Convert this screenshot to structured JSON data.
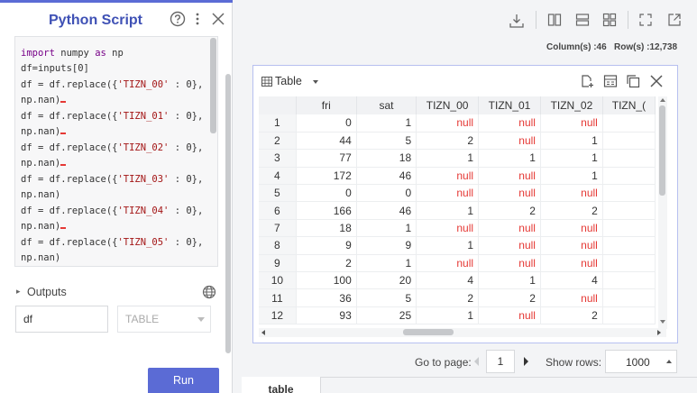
{
  "panel": {
    "title": "Python Script",
    "code_lines": [
      [
        {
          "t": "import",
          "c": "kw"
        },
        {
          "t": " numpy "
        },
        {
          "t": "as",
          "c": "kw"
        },
        {
          "t": " np"
        }
      ],
      [
        {
          "t": "df=inputs[0]"
        }
      ],
      [
        {
          "t": "df = df.replace({"
        },
        {
          "t": "'TIZN_00'",
          "c": "str"
        },
        {
          "t": " : 0},"
        }
      ],
      [
        {
          "t": "np.nan)"
        },
        {
          "t": "",
          "c": "err"
        }
      ],
      [
        {
          "t": "df = df.replace({"
        },
        {
          "t": "'TIZN_01'",
          "c": "str"
        },
        {
          "t": " : 0},"
        }
      ],
      [
        {
          "t": "np.nan)"
        },
        {
          "t": "",
          "c": "err"
        }
      ],
      [
        {
          "t": "df = df.replace({"
        },
        {
          "t": "'TIZN_02'",
          "c": "str"
        },
        {
          "t": " : 0},"
        }
      ],
      [
        {
          "t": "np.nan)"
        },
        {
          "t": "",
          "c": "err"
        }
      ],
      [
        {
          "t": "df = df.replace({"
        },
        {
          "t": "'TIZN_03'",
          "c": "str"
        },
        {
          "t": " : 0},"
        }
      ],
      [
        {
          "t": "np.nan)"
        }
      ],
      [
        {
          "t": "df = df.replace({"
        },
        {
          "t": "'TIZN_04'",
          "c": "str"
        },
        {
          "t": " : 0},"
        }
      ],
      [
        {
          "t": "np.nan)"
        },
        {
          "t": "",
          "c": "err"
        }
      ],
      [
        {
          "t": "df = df.replace({"
        },
        {
          "t": "'TIZN_05'",
          "c": "str"
        },
        {
          "t": " : 0},"
        }
      ],
      [
        {
          "t": "np.nan)"
        }
      ]
    ],
    "outputs_label": "Outputs",
    "output_name": "df",
    "output_type": "TABLE",
    "run_label": "Run"
  },
  "toolbar": {
    "icons": [
      "download-icon",
      "columns-layout-icon",
      "rows-layout-icon",
      "grid-layout-icon",
      "expand-icon",
      "popout-icon"
    ]
  },
  "stats": "Column(s) :46   Row(s) :12,738",
  "table": {
    "view_label": "Table",
    "columns": [
      "",
      "fri",
      "sat",
      "TIZN_00",
      "TIZN_01",
      "TIZN_02",
      "TIZN_("
    ],
    "rows": [
      [
        "1",
        "0",
        "1",
        "null",
        "null",
        "null",
        ""
      ],
      [
        "2",
        "44",
        "5",
        "2",
        "null",
        "1",
        ""
      ],
      [
        "3",
        "77",
        "18",
        "1",
        "1",
        "1",
        ""
      ],
      [
        "4",
        "172",
        "46",
        "null",
        "null",
        "1",
        ""
      ],
      [
        "5",
        "0",
        "0",
        "null",
        "null",
        "null",
        ""
      ],
      [
        "6",
        "166",
        "46",
        "1",
        "2",
        "2",
        ""
      ],
      [
        "7",
        "18",
        "1",
        "null",
        "null",
        "null",
        ""
      ],
      [
        "8",
        "9",
        "9",
        "1",
        "null",
        "null",
        ""
      ],
      [
        "9",
        "2",
        "1",
        "null",
        "null",
        "null",
        ""
      ],
      [
        "10",
        "100",
        "20",
        "4",
        "1",
        "4",
        ""
      ],
      [
        "11",
        "36",
        "5",
        "2",
        "2",
        "null",
        ""
      ],
      [
        "12",
        "93",
        "25",
        "1",
        "null",
        "2",
        ""
      ]
    ],
    "null_color": "#e53935"
  },
  "pagination": {
    "goto_label": "Go to page:",
    "page": "1",
    "show_rows_label": "Show rows:",
    "rows_per_page": "1000"
  },
  "bottom_tab": "table",
  "colors": {
    "accent": "#5b6bd5",
    "title": "#3f51b5",
    "card_border": "#b7c0f0"
  }
}
